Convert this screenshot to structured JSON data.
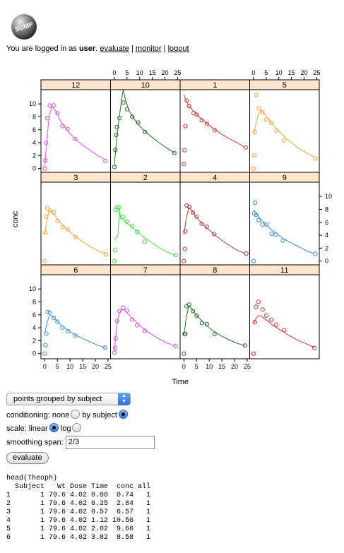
{
  "header": {
    "logo_text": "SUMP",
    "login_prefix": "You are logged in as ",
    "username": "user",
    "login_suffix": ".",
    "links": [
      "evaluate",
      "monitor",
      "logout"
    ],
    "separator": "|"
  },
  "chart_data": {
    "type": "scatter",
    "title": "",
    "xlabel": "Time",
    "ylabel": "conc",
    "xlim": [
      -1.5,
      26
    ],
    "ylim": [
      -0.8,
      12.2
    ],
    "x_ticks": [
      0,
      5,
      10,
      15,
      20,
      25
    ],
    "y_ticks": [
      0,
      2,
      4,
      6,
      8,
      10
    ],
    "layout": {
      "columns": 4,
      "rows": 3
    },
    "grid": false,
    "legend": "none",
    "panels": [
      {
        "subject": "12",
        "color": "#e54fe5",
        "points": [
          [
            0,
            0
          ],
          [
            0.25,
            1.25
          ],
          [
            0.5,
            3.96
          ],
          [
            1,
            7.82
          ],
          [
            2,
            9.72
          ],
          [
            3.5,
            9.75
          ],
          [
            5,
            8.57
          ],
          [
            7,
            6.59
          ],
          [
            9,
            6.11
          ],
          [
            12,
            4.57
          ],
          [
            24,
            1.17
          ]
        ],
        "curve": [
          [
            0,
            0.3
          ],
          [
            1,
            5.5
          ],
          [
            2,
            8.6
          ],
          [
            3,
            9.6
          ],
          [
            4.5,
            8.8
          ],
          [
            6,
            7.5
          ],
          [
            8,
            6.4
          ],
          [
            10,
            5.4
          ],
          [
            12,
            4.6
          ],
          [
            15,
            3.6
          ],
          [
            18,
            2.8
          ],
          [
            21,
            2.0
          ],
          [
            24,
            1.4
          ]
        ]
      },
      {
        "subject": "10",
        "color": "#2c6b2c",
        "points": [
          [
            0,
            0.24
          ],
          [
            0.37,
            2.89
          ],
          [
            0.77,
            5.22
          ],
          [
            1.02,
            6.41
          ],
          [
            2.05,
            7.83
          ],
          [
            3.55,
            10.21
          ],
          [
            5.05,
            9.18
          ],
          [
            7.08,
            8.02
          ],
          [
            9.38,
            7.14
          ],
          [
            12.1,
            5.68
          ],
          [
            23.7,
            2.42
          ]
        ],
        "curve": [
          [
            0,
            0.6
          ],
          [
            1,
            5.0
          ],
          [
            2,
            8.0
          ],
          [
            3,
            11.0
          ],
          [
            3.5,
            12.4
          ],
          [
            4.5,
            10.5
          ],
          [
            6,
            8.8
          ],
          [
            8,
            7.6
          ],
          [
            10,
            6.6
          ],
          [
            12,
            5.8
          ],
          [
            15,
            4.8
          ],
          [
            18,
            3.9
          ],
          [
            21,
            3.1
          ],
          [
            24,
            2.4
          ]
        ]
      },
      {
        "subject": "1",
        "color": "#e03434",
        "points": [
          [
            0,
            0.74
          ],
          [
            0.25,
            2.84
          ],
          [
            0.57,
            6.57
          ],
          [
            1.12,
            10.5
          ],
          [
            2.02,
            9.66
          ],
          [
            3.82,
            8.58
          ],
          [
            5.1,
            8.36
          ],
          [
            7.03,
            7.47
          ],
          [
            9.05,
            6.89
          ],
          [
            12.12,
            5.94
          ],
          [
            24.37,
            3.28
          ]
        ],
        "curve": [
          [
            0,
            11.4
          ],
          [
            1,
            10.4
          ],
          [
            2,
            9.7
          ],
          [
            4,
            8.8
          ],
          [
            6,
            8.0
          ],
          [
            8,
            7.3
          ],
          [
            10,
            6.7
          ],
          [
            12,
            6.1
          ],
          [
            15,
            5.3
          ],
          [
            18,
            4.6
          ],
          [
            21,
            4.0
          ],
          [
            24,
            3.3
          ]
        ]
      },
      {
        "subject": "5",
        "color": "#f5a53a",
        "points": [
          [
            0,
            0
          ],
          [
            0.3,
            2.02
          ],
          [
            0.52,
            5.63
          ],
          [
            1,
            11.4
          ],
          [
            2.02,
            9.33
          ],
          [
            3.5,
            8.74
          ],
          [
            5.02,
            7.56
          ],
          [
            7.02,
            7.09
          ],
          [
            9.1,
            5.9
          ],
          [
            12,
            4.37
          ],
          [
            24.35,
            1.57
          ]
        ],
        "curve": [
          [
            0,
            5.3
          ],
          [
            1,
            7.0
          ],
          [
            2,
            8.5
          ],
          [
            3,
            9.0
          ],
          [
            4,
            8.6
          ],
          [
            6,
            7.6
          ],
          [
            8,
            6.6
          ],
          [
            10,
            5.8
          ],
          [
            12,
            5.0
          ],
          [
            15,
            4.0
          ],
          [
            18,
            3.1
          ],
          [
            21,
            2.4
          ],
          [
            24,
            1.8
          ]
        ]
      },
      {
        "subject": "3",
        "color": "#f5a53a",
        "points": [
          [
            0,
            0
          ],
          [
            0.27,
            4.4
          ],
          [
            0.58,
            6.9
          ],
          [
            1.02,
            8.2
          ],
          [
            2.02,
            7.8
          ],
          [
            3.62,
            7.5
          ],
          [
            5.08,
            6.2
          ],
          [
            7.07,
            5.3
          ],
          [
            9,
            4.9
          ],
          [
            12.15,
            3.7
          ],
          [
            24.17,
            1.05
          ]
        ],
        "curve": [
          [
            0,
            4.2
          ],
          [
            1,
            6.8
          ],
          [
            2,
            7.8
          ],
          [
            3,
            7.6
          ],
          [
            4,
            7.0
          ],
          [
            6,
            6.0
          ],
          [
            8,
            5.2
          ],
          [
            10,
            4.5
          ],
          [
            12,
            3.8
          ],
          [
            15,
            3.0
          ],
          [
            18,
            2.2
          ],
          [
            21,
            1.6
          ],
          [
            24,
            1.1
          ]
        ]
      },
      {
        "subject": "2",
        "color": "#44e044",
        "points": [
          [
            0,
            0
          ],
          [
            0.27,
            1.72
          ],
          [
            0.52,
            7.91
          ],
          [
            1,
            8.31
          ],
          [
            1.92,
            8.33
          ],
          [
            3.5,
            6.85
          ],
          [
            5.02,
            6.08
          ],
          [
            7.03,
            5.4
          ],
          [
            9,
            4.55
          ],
          [
            12,
            3.01
          ],
          [
            24.3,
            0.9
          ]
        ],
        "curve": [
          [
            0,
            3.4
          ],
          [
            1,
            3.6
          ],
          [
            1.5,
            4.2
          ],
          [
            2,
            8.2
          ],
          [
            2.5,
            6.6
          ],
          [
            3.5,
            6.4
          ],
          [
            5,
            5.9
          ],
          [
            7,
            5.2
          ],
          [
            9,
            4.6
          ],
          [
            12,
            3.6
          ],
          [
            15,
            2.8
          ],
          [
            18,
            2.0
          ],
          [
            21,
            1.4
          ],
          [
            24,
            0.9
          ]
        ]
      },
      {
        "subject": "4",
        "color": "#b03c3c",
        "points": [
          [
            0,
            0
          ],
          [
            0.35,
            1.89
          ],
          [
            0.6,
            4.6
          ],
          [
            1.07,
            8.6
          ],
          [
            2.13,
            8.38
          ],
          [
            3.5,
            7.54
          ],
          [
            5.02,
            6.88
          ],
          [
            7.02,
            5.78
          ],
          [
            9.02,
            5.33
          ],
          [
            11.98,
            4.19
          ],
          [
            24.65,
            1.15
          ]
        ],
        "curve": [
          [
            0,
            4.1
          ],
          [
            1,
            6.8
          ],
          [
            2,
            8.3
          ],
          [
            3,
            7.9
          ],
          [
            4,
            7.3
          ],
          [
            6,
            6.3
          ],
          [
            8,
            5.5
          ],
          [
            10,
            4.8
          ],
          [
            12,
            4.1
          ],
          [
            15,
            3.2
          ],
          [
            18,
            2.4
          ],
          [
            21,
            1.7
          ],
          [
            24,
            1.2
          ]
        ]
      },
      {
        "subject": "9",
        "color": "#3d8fe0",
        "points": [
          [
            0,
            0
          ],
          [
            0.3,
            7.37
          ],
          [
            0.63,
            9.03
          ],
          [
            1.05,
            7.14
          ],
          [
            2.02,
            6.33
          ],
          [
            3.53,
            5.66
          ],
          [
            5.02,
            5.67
          ],
          [
            7.17,
            4.24
          ],
          [
            8.8,
            4.11
          ],
          [
            11.6,
            3.16
          ],
          [
            24.43,
            1.12
          ]
        ],
        "curve": [
          [
            0,
            7.9
          ],
          [
            1,
            7.5
          ],
          [
            2,
            6.9
          ],
          [
            3,
            6.4
          ],
          [
            5,
            5.6
          ],
          [
            7,
            4.9
          ],
          [
            9,
            4.3
          ],
          [
            11,
            3.7
          ],
          [
            13,
            3.2
          ],
          [
            15,
            2.8
          ],
          [
            18,
            2.2
          ],
          [
            21,
            1.6
          ],
          [
            24,
            1.1
          ]
        ]
      },
      {
        "subject": "6",
        "color": "#3d8fe0",
        "points": [
          [
            0,
            0
          ],
          [
            0.27,
            1.29
          ],
          [
            0.58,
            3.08
          ],
          [
            1.15,
            6.44
          ],
          [
            2.03,
            6.32
          ],
          [
            3.57,
            5.53
          ],
          [
            5,
            4.94
          ],
          [
            7,
            4.02
          ],
          [
            9.22,
            3.46
          ],
          [
            12.1,
            2.78
          ],
          [
            23.85,
            0.92
          ]
        ],
        "curve": [
          [
            0,
            3.2
          ],
          [
            1,
            5.0
          ],
          [
            2,
            5.9
          ],
          [
            3,
            5.8
          ],
          [
            4,
            5.4
          ],
          [
            6,
            4.6
          ],
          [
            8,
            4.0
          ],
          [
            10,
            3.4
          ],
          [
            12,
            2.9
          ],
          [
            15,
            2.3
          ],
          [
            18,
            1.8
          ],
          [
            21,
            1.3
          ],
          [
            24,
            0.9
          ]
        ]
      },
      {
        "subject": "7",
        "color": "#e54fe5",
        "points": [
          [
            0,
            0.15
          ],
          [
            0.25,
            0.85
          ],
          [
            0.5,
            2.35
          ],
          [
            1.02,
            5.02
          ],
          [
            2.02,
            6.58
          ],
          [
            3.48,
            7.09
          ],
          [
            5,
            6.66
          ],
          [
            6.98,
            5.25
          ],
          [
            9,
            4.39
          ],
          [
            12.05,
            3.53
          ],
          [
            24.22,
            1.15
          ]
        ],
        "curve": [
          [
            0,
            0.5
          ],
          [
            1,
            4.5
          ],
          [
            2,
            6.3
          ],
          [
            3,
            6.8
          ],
          [
            4,
            6.7
          ],
          [
            6,
            5.9
          ],
          [
            8,
            5.1
          ],
          [
            10,
            4.4
          ],
          [
            12,
            3.7
          ],
          [
            15,
            2.9
          ],
          [
            18,
            2.2
          ],
          [
            21,
            1.6
          ],
          [
            24,
            1.2
          ]
        ]
      },
      {
        "subject": "8",
        "color": "#2c6b2c",
        "points": [
          [
            0,
            0
          ],
          [
            0.25,
            3.05
          ],
          [
            0.52,
            3.05
          ],
          [
            0.98,
            7.31
          ],
          [
            2.02,
            7.56
          ],
          [
            3.53,
            6.59
          ],
          [
            5.05,
            5.88
          ],
          [
            7.15,
            4.73
          ],
          [
            9.07,
            4.57
          ],
          [
            12.1,
            3.0
          ],
          [
            24.12,
            1.25
          ]
        ],
        "curve": [
          [
            0,
            2.9
          ],
          [
            1,
            5.8
          ],
          [
            2,
            7.4
          ],
          [
            3,
            7.0
          ],
          [
            4,
            6.4
          ],
          [
            6,
            5.5
          ],
          [
            8,
            4.7
          ],
          [
            10,
            4.0
          ],
          [
            12,
            3.4
          ],
          [
            15,
            2.7
          ],
          [
            18,
            2.1
          ],
          [
            21,
            1.6
          ],
          [
            24,
            1.2
          ]
        ]
      },
      {
        "subject": "11",
        "color": "#e03434",
        "points": [
          [
            0,
            0
          ],
          [
            0.5,
            4.86
          ],
          [
            0.98,
            7.24
          ],
          [
            1.98,
            8.0
          ],
          [
            3.6,
            6.81
          ],
          [
            5.02,
            5.87
          ],
          [
            7.03,
            5.22
          ],
          [
            9.03,
            4.45
          ],
          [
            12.12,
            3.62
          ],
          [
            24.08,
            0.86
          ]
        ],
        "curve": [
          [
            0,
            4.7
          ],
          [
            1,
            5.4
          ],
          [
            2,
            5.9
          ],
          [
            3,
            5.8
          ],
          [
            4,
            5.5
          ],
          [
            6,
            4.9
          ],
          [
            8,
            4.3
          ],
          [
            10,
            3.8
          ],
          [
            12,
            3.3
          ],
          [
            15,
            2.6
          ],
          [
            18,
            2.0
          ],
          [
            21,
            1.5
          ],
          [
            24,
            1.0
          ]
        ]
      }
    ]
  },
  "controls": {
    "grouping_select": {
      "selected": "points grouped by subject"
    },
    "conditioning": {
      "label": "conditioning:",
      "options": [
        "none",
        "by subject"
      ],
      "selected": "by subject"
    },
    "scale": {
      "label": "scale:",
      "options": [
        "linear",
        "log"
      ],
      "selected": "linear"
    },
    "smoothing": {
      "label": "smoothing span:",
      "value": "2/3"
    },
    "evaluate_label": "evaluate"
  },
  "output": {
    "title": "head(Theoph)",
    "header": "  Subject   Wt Dose Time  conc all",
    "rows": [
      "1       1 79.6 4.02 0.00  0.74   1",
      "2       1 79.6 4.02 0.25  2.84   1",
      "3       1 79.6 4.02 0.57  6.57   1",
      "4       1 79.6 4.02 1.12 10.50   1",
      "5       1 79.6 4.02 2.02  9.66   1",
      "6       1 79.6 4.02 3.82  8.58   1"
    ]
  }
}
